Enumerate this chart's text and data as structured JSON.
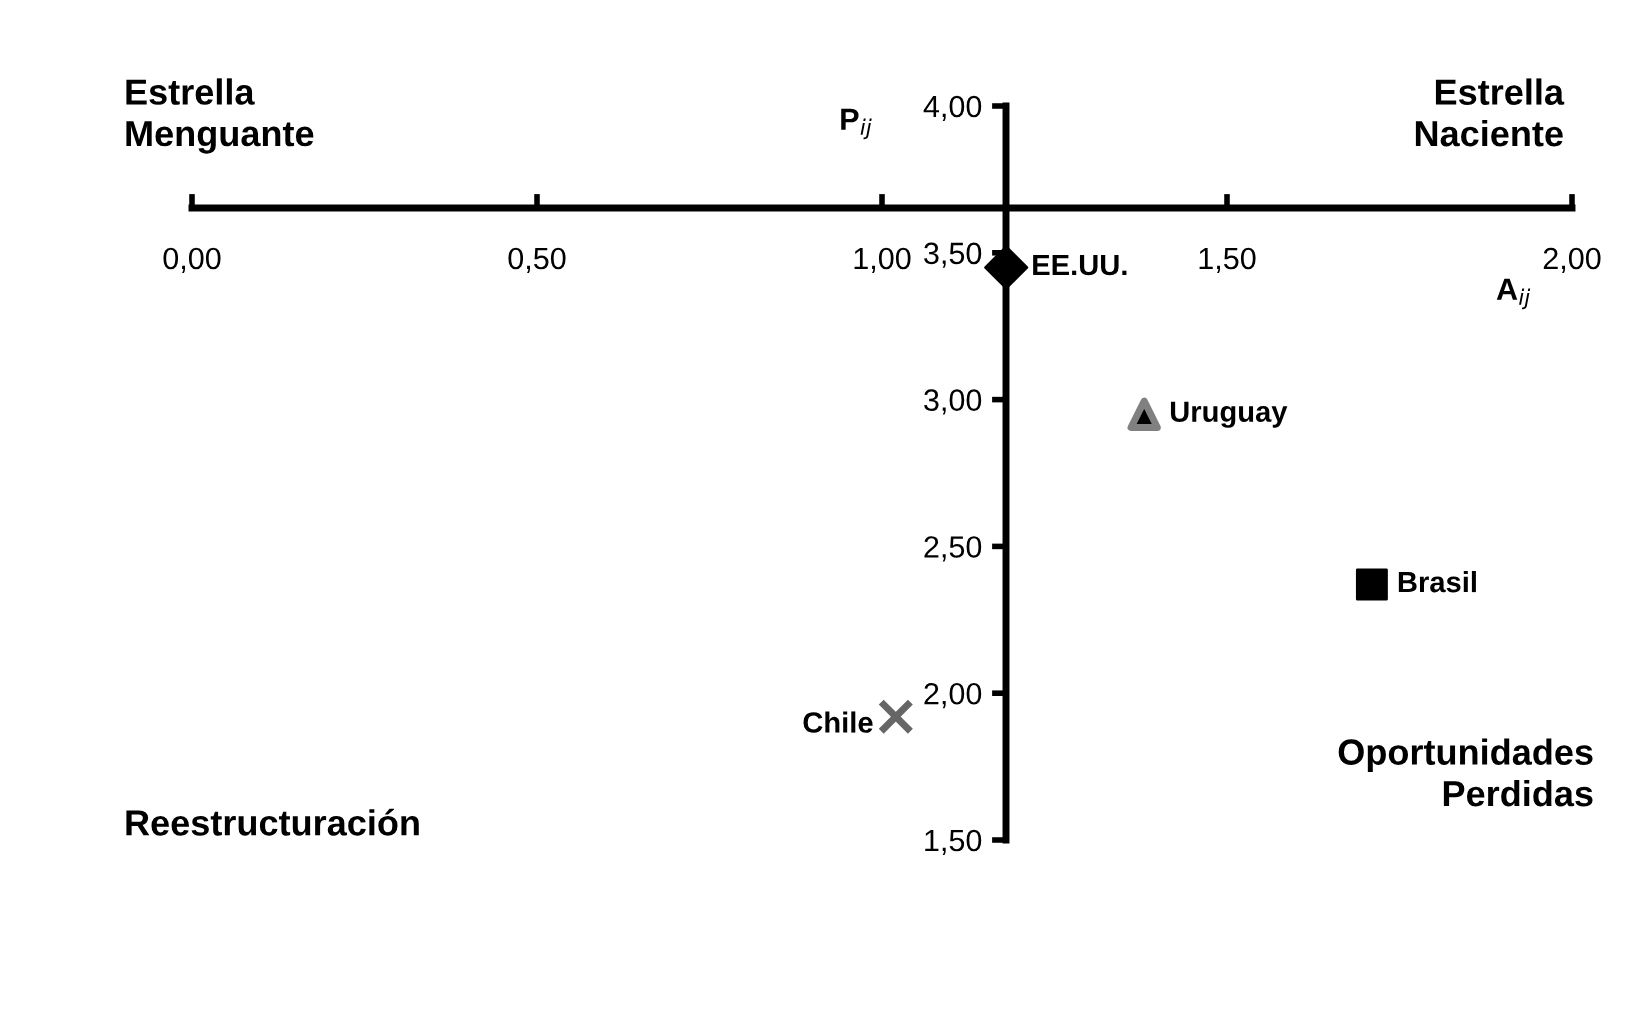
{
  "chart_data": {
    "type": "scatter",
    "xlabel": "A$_{ij}$",
    "ylabel": "P$_{ij}$",
    "xlim": [
      0,
      2
    ],
    "ylim": [
      1.5,
      4
    ],
    "xticks": [
      {
        "value": 0,
        "label": "0,00"
      },
      {
        "value": 0.5,
        "label": "0,50"
      },
      {
        "value": 1,
        "label": "1,00"
      },
      {
        "value": 1.5,
        "label": "1,50"
      },
      {
        "value": 2,
        "label": "2,00"
      }
    ],
    "yticks": [
      {
        "value": 1.5,
        "label": "1,50"
      },
      {
        "value": 2,
        "label": "2,00"
      },
      {
        "value": 2.5,
        "label": "2,50"
      },
      {
        "value": 3,
        "label": "3,00"
      },
      {
        "value": 3.5,
        "label": "3,50"
      },
      {
        "value": 4,
        "label": "4,00"
      }
    ],
    "annotations": [
      "Estrella\nMenguante",
      "Estrella\nNaciente",
      "Reestructuración",
      "Oportunidades\nPerdidas"
    ],
    "grid": false,
    "legend": false,
    "series": [
      {
        "name": "EE.UU.",
        "color": "#000000",
        "marker": "diamond",
        "x": [
          1.18
        ],
        "values": [
          3.45
        ]
      },
      {
        "name": "Uruguay",
        "color": "#808080",
        "marker": "triangle",
        "x": [
          1.38
        ],
        "values": [
          2.95
        ]
      },
      {
        "name": "Brasil",
        "color": "#000000",
        "marker": "square",
        "x": [
          1.71
        ],
        "values": [
          2.37
        ]
      },
      {
        "name": "Chile",
        "color": "#666666",
        "marker": "cross",
        "x": [
          1.02
        ],
        "values": [
          1.92
        ]
      }
    ]
  }
}
